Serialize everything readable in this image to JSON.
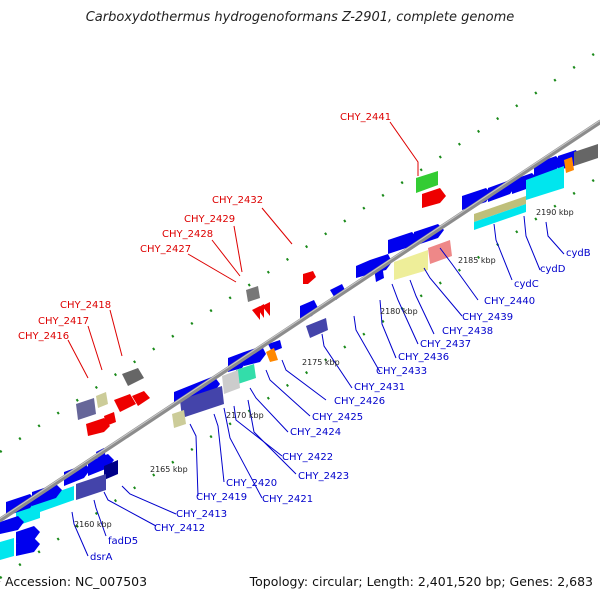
{
  "header": {
    "title": "Carboxydothermus hydrogenoformans Z-2901, complete genome"
  },
  "footer": {
    "accession": "² Accession: NC_007503",
    "summary": "Topology: circular; Length: 2,401,520 bp; Genes: 2,683"
  },
  "colors": {
    "backbone": "#8c8c8c",
    "gene_forward": "#0000ee",
    "gene_reverse": "#ee0000",
    "label_red": "#dd0000",
    "label_blue": "#0000cc",
    "tick": "#1a8a1a"
  },
  "kbp_marks": [
    "2160 kbp",
    "2165 kbp",
    "2170 kbp",
    "2175 kbp",
    "2180 kbp",
    "2185 kbp",
    "2190 kbp"
  ],
  "labels_red": [
    "CHY_2441",
    "CHY_2432",
    "CHY_2429",
    "CHY_2428",
    "CHY_2427",
    "CHY_2418",
    "CHY_2417",
    "CHY_2416"
  ],
  "labels_blue": [
    "cydB",
    "cydD",
    "cydC",
    "CHY_2440",
    "CHY_2439",
    "CHY_2438",
    "CHY_2437",
    "CHY_2436",
    "CHY_2433",
    "CHY_2431",
    "CHY_2426",
    "CHY_2425",
    "CHY_2424",
    "CHY_2423",
    "CHY_2422",
    "CHY_2421",
    "CHY_2420",
    "CHY_2419",
    "CHY_2413",
    "CHY_2412",
    "fadD5",
    "dsrA"
  ]
}
